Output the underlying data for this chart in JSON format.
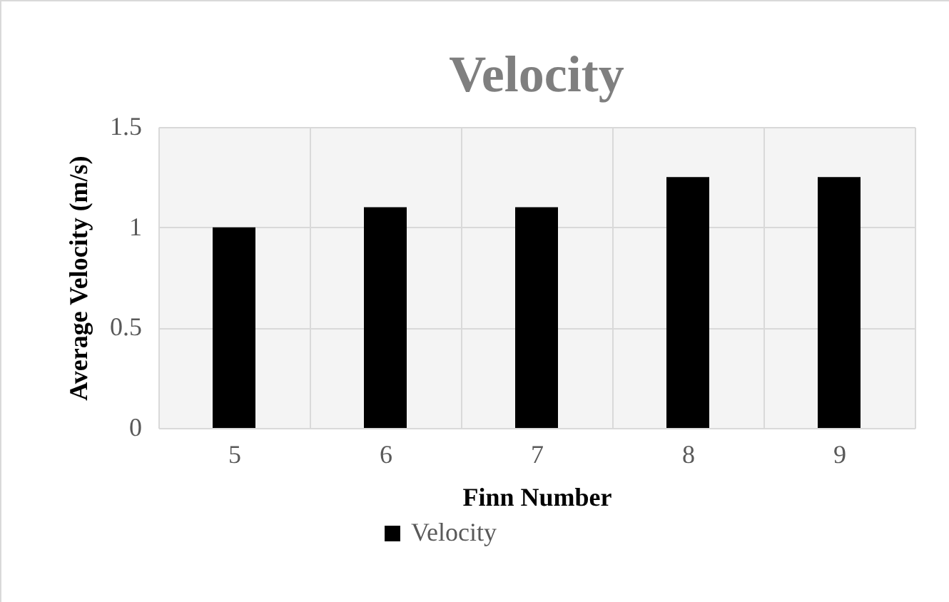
{
  "chart_data": {
    "type": "bar",
    "title": "Velocity",
    "xlabel": "Finn Number",
    "ylabel": "Average Velocity (m/s)",
    "categories": [
      "5",
      "6",
      "7",
      "8",
      "9"
    ],
    "series": [
      {
        "name": "Velocity",
        "color": "#000000",
        "values": [
          1,
          1.1,
          1.1,
          1.25,
          1.25
        ]
      }
    ],
    "ylim": [
      0,
      1.5
    ],
    "yticks": [
      0,
      0.5,
      1,
      1.5
    ],
    "grid": true,
    "legend": "bottom"
  }
}
